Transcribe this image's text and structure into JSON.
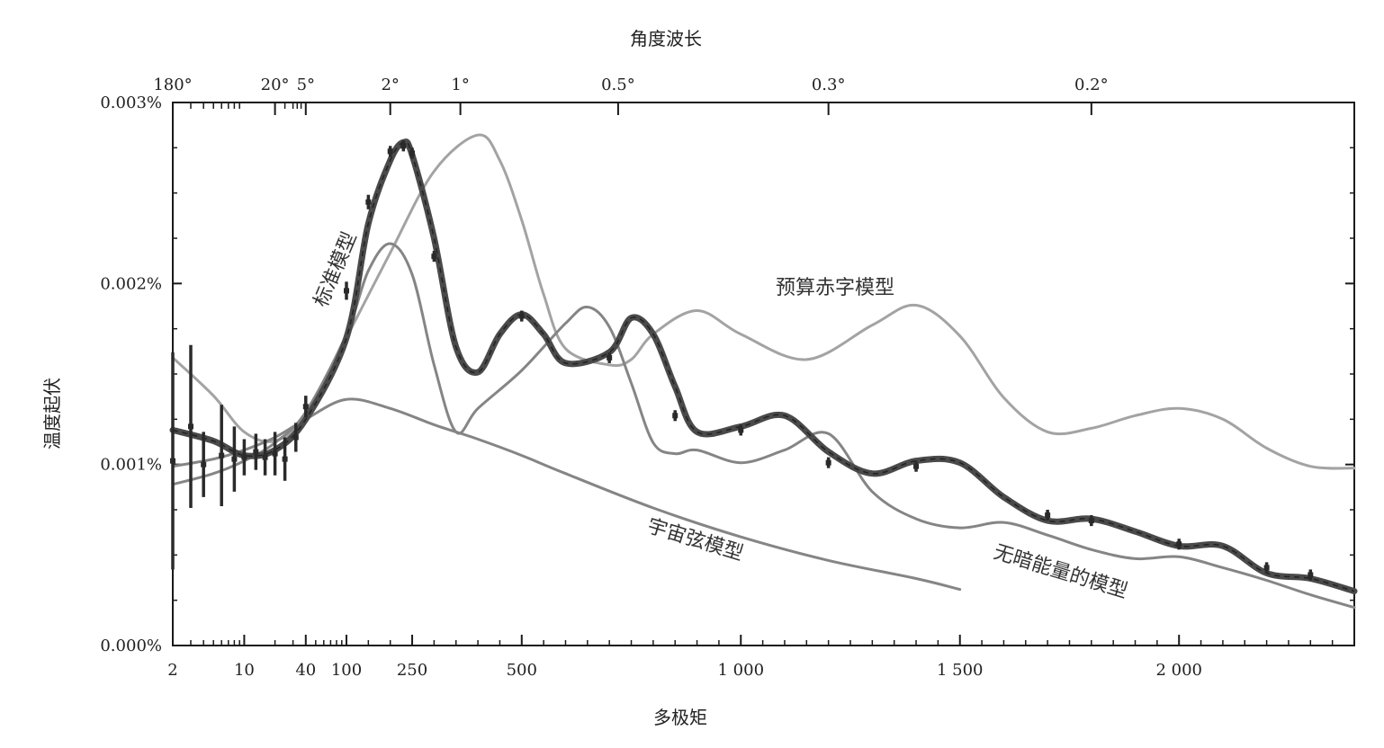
{
  "chart_data": {
    "type": "line",
    "title": "",
    "xlabel": "多极矩",
    "ylabel": "温度起伏",
    "top_axis_label": "角度波长",
    "x_scale": "piecewise: logarithmic for 2–100, linear above 100",
    "xlim": [
      2,
      2400
    ],
    "ylim": [
      0.0,
      0.003
    ],
    "y_tick_labels": [
      "0.000%",
      "0.001%",
      "0.002%",
      "0.003%"
    ],
    "y_ticks": [
      0.0,
      0.001,
      0.002,
      0.003
    ],
    "x_ticks": [
      2,
      10,
      40,
      100,
      250,
      500,
      1000,
      1500,
      2000
    ],
    "x_tick_labels": [
      "2",
      "10",
      "40",
      "100",
      "250",
      "500",
      "1 000",
      "1 500",
      "2 000"
    ],
    "top_ticks": [
      {
        "label": "180°",
        "l": 2
      },
      {
        "label": "20°",
        "l": 20
      },
      {
        "label": "5°",
        "l": 40
      },
      {
        "label": "2°",
        "l": 200
      },
      {
        "label": "1°",
        "l": 360
      },
      {
        "label": "0.5°",
        "l": 720
      },
      {
        "label": "0.3°",
        "l": 1200
      },
      {
        "label": "0.2°",
        "l": 1800
      }
    ],
    "grid": false,
    "legend": "none",
    "series": [
      {
        "name": "标准模型",
        "style": "thick-dark",
        "x": [
          2,
          5,
          10,
          20,
          40,
          100,
          150,
          200,
          230,
          250,
          300,
          350,
          400,
          450,
          500,
          550,
          600,
          700,
          750,
          800,
          850,
          900,
          1000,
          1100,
          1200,
          1300,
          1400,
          1500,
          1600,
          1700,
          1800,
          1900,
          2000,
          2100,
          2200,
          2300,
          2400
        ],
        "y": [
          0.00119,
          0.00113,
          0.00105,
          0.00108,
          0.00125,
          0.0017,
          0.00233,
          0.00268,
          0.00278,
          0.00271,
          0.00225,
          0.00165,
          0.00151,
          0.00172,
          0.00183,
          0.00172,
          0.00156,
          0.00162,
          0.00181,
          0.00172,
          0.00143,
          0.00118,
          0.00121,
          0.00127,
          0.00107,
          0.00095,
          0.00102,
          0.00101,
          0.00082,
          0.00069,
          0.0007,
          0.00063,
          0.00055,
          0.00055,
          0.0004,
          0.00037,
          0.0003
        ]
      },
      {
        "name": "预算赤字模型",
        "style": "light",
        "x": [
          2,
          5,
          10,
          20,
          40,
          100,
          200,
          300,
          400,
          450,
          500,
          550,
          600,
          700,
          750,
          800,
          900,
          1000,
          1150,
          1300,
          1400,
          1500,
          1600,
          1700,
          1800,
          1900,
          2000,
          2100,
          2200,
          2300,
          2400
        ],
        "y": [
          0.00159,
          0.00138,
          0.00118,
          0.00113,
          0.00127,
          0.0017,
          0.00217,
          0.00262,
          0.00282,
          0.00268,
          0.00235,
          0.00194,
          0.00164,
          0.00155,
          0.00158,
          0.00172,
          0.00185,
          0.00172,
          0.00158,
          0.00177,
          0.00188,
          0.00171,
          0.00137,
          0.00118,
          0.0012,
          0.00127,
          0.00131,
          0.00125,
          0.00109,
          0.00099,
          0.00098
        ]
      },
      {
        "name": "无暗能量的模型",
        "style": "medium",
        "x": [
          2,
          5,
          10,
          20,
          40,
          100,
          150,
          200,
          250,
          300,
          350,
          400,
          500,
          600,
          650,
          700,
          750,
          800,
          850,
          900,
          1000,
          1100,
          1200,
          1300,
          1400,
          1500,
          1600,
          1700,
          1800,
          1900,
          2000,
          2100,
          2200,
          2300,
          2400
        ],
        "y": [
          0.00089,
          0.00095,
          0.00102,
          0.00112,
          0.00129,
          0.00172,
          0.00207,
          0.00222,
          0.00205,
          0.00155,
          0.00118,
          0.00131,
          0.00152,
          0.00178,
          0.00187,
          0.00176,
          0.00145,
          0.00112,
          0.00106,
          0.00108,
          0.00101,
          0.00108,
          0.00117,
          0.00085,
          0.0007,
          0.00065,
          0.00068,
          0.00061,
          0.00053,
          0.00048,
          0.00049,
          0.00043,
          0.00036,
          0.00028,
          0.00021
        ]
      },
      {
        "name": "宇宙弦模型",
        "style": "medium",
        "x": [
          2,
          5,
          10,
          20,
          40,
          100,
          200,
          300,
          400,
          500,
          600,
          800,
          1000,
          1200,
          1400,
          1500
        ],
        "y": [
          0.00099,
          0.00103,
          0.00108,
          0.00115,
          0.00125,
          0.00136,
          0.00131,
          0.00122,
          0.00114,
          0.00105,
          0.00095,
          0.00076,
          0.0006,
          0.00047,
          0.00037,
          0.00031
        ]
      }
    ],
    "data_points": {
      "name": "",
      "x": [
        2,
        3,
        4,
        6,
        8,
        10,
        13,
        16,
        20,
        25,
        32,
        40,
        100,
        150,
        200,
        230,
        250,
        300,
        500,
        700,
        850,
        1000,
        1200,
        1400,
        1700,
        1800,
        2000,
        2200,
        2300
      ],
      "y": [
        0.00102,
        0.00121,
        0.001,
        0.00105,
        0.00103,
        0.00104,
        0.00107,
        0.00104,
        0.00106,
        0.00103,
        0.00115,
        0.00132,
        0.00196,
        0.00245,
        0.00273,
        0.00276,
        0.00272,
        0.00215,
        0.00182,
        0.00159,
        0.00127,
        0.00119,
        0.00101,
        0.00099,
        0.00072,
        0.00069,
        0.00056,
        0.00043,
        0.00039
      ],
      "err": [
        0.0006,
        0.00045,
        0.00018,
        0.00028,
        0.00018,
        0.0001,
        0.0001,
        0.0001,
        0.00012,
        0.00012,
        8e-05,
        6e-05,
        5e-05,
        4e-05,
        3e-05,
        3e-05,
        3e-05,
        3e-05,
        3e-05,
        3e-05,
        3e-05,
        3e-05,
        3e-05,
        3e-05,
        3e-05,
        3e-05,
        3e-05,
        3e-05,
        3e-05
      ]
    },
    "annotations": [
      {
        "text": "标准模型",
        "series": "标准模型"
      },
      {
        "text": "预算赤字模型",
        "series": "预算赤字模型"
      },
      {
        "text": "宇宙弦模型",
        "series": "宇宙弦模型"
      },
      {
        "text": "无暗能量的模型",
        "series": "无暗能量的模型"
      }
    ]
  }
}
